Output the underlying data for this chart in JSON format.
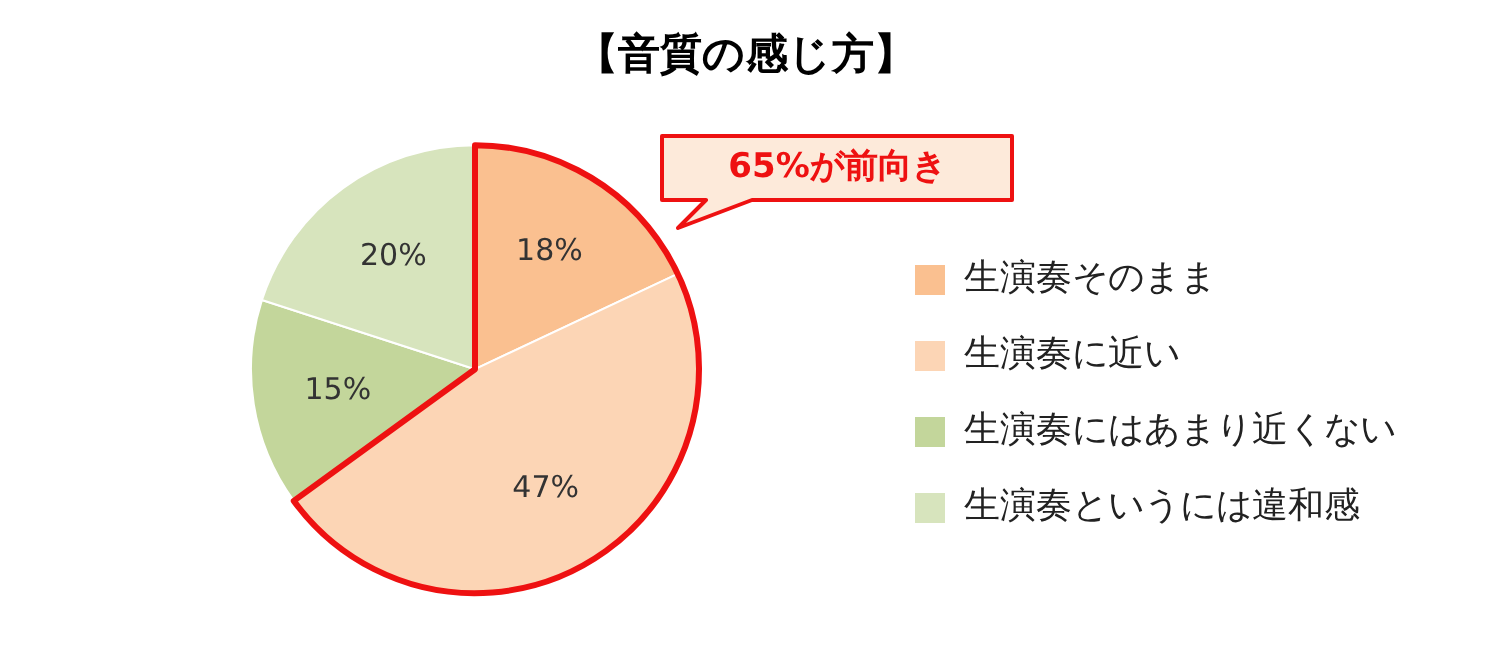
{
  "chart_data": {
    "type": "pie",
    "title": "【音質の感じ方】",
    "categories": [
      "生演奏そのまま",
      "生演奏に近い",
      "生演奏にはあまり近くない",
      "生演奏というには違和感"
    ],
    "values": [
      18,
      47,
      15,
      20
    ],
    "colors": [
      "#fac090",
      "#fcd5b5",
      "#c3d69b",
      "#d7e4bd"
    ],
    "value_labels": [
      "18%",
      "47%",
      "15%",
      "20%"
    ],
    "legend": "right",
    "annotations": [
      "65%が前向き"
    ]
  }
}
